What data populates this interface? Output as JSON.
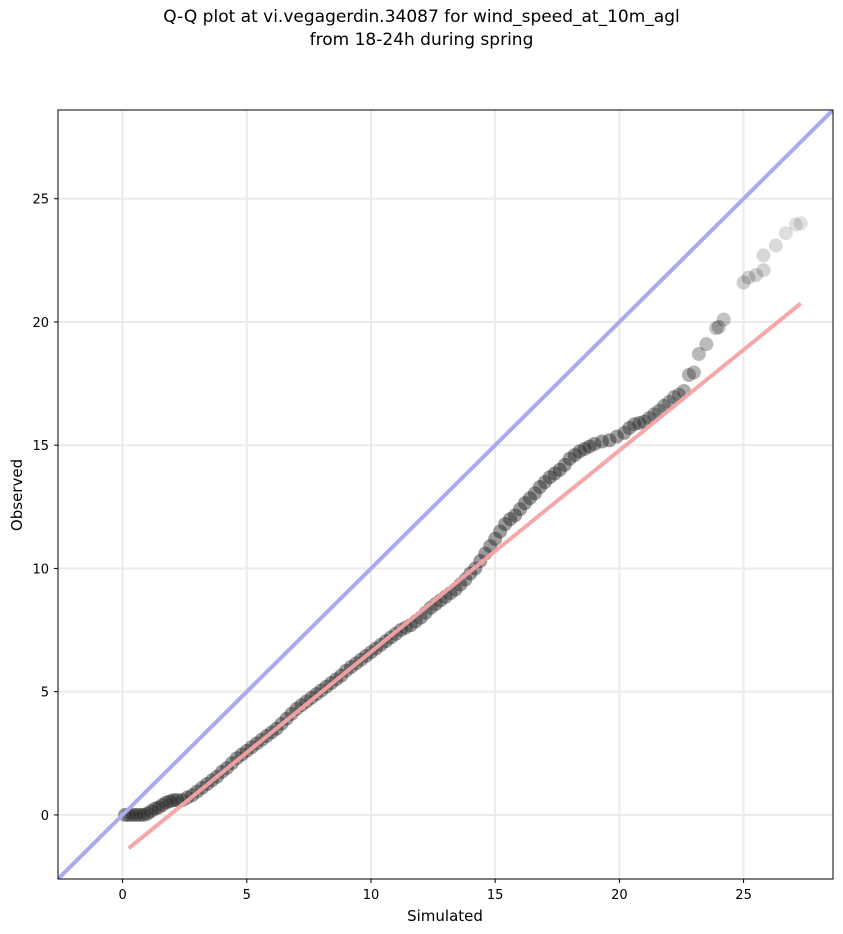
{
  "chart_data": {
    "type": "scatter",
    "title_line1": "Q-Q plot at vi.vegagerdin.34087 for wind_speed_at_10m_agl",
    "title_line2": "from 18-24h during spring",
    "xlabel": "Simulated",
    "ylabel": "Observed",
    "xlim": [
      -2.6,
      28.6
    ],
    "ylim": [
      -2.6,
      28.6
    ],
    "xticks": [
      0,
      5,
      10,
      15,
      20,
      25
    ],
    "yticks": [
      0,
      5,
      10,
      15,
      20,
      25
    ],
    "grid": true,
    "colors": {
      "identity_line": "#aaaaf0",
      "fit_line": "#f5a3a3",
      "points": "#222222",
      "frame": "#000000",
      "grid": "#ebebeb"
    },
    "identity_line": {
      "x": [
        -2.6,
        28.6
      ],
      "y": [
        -2.6,
        28.6
      ]
    },
    "fit_line": {
      "x": [
        0.25,
        27.3
      ],
      "y": [
        -1.35,
        20.75
      ]
    },
    "points": {
      "x": [
        0.1,
        0.25,
        0.4,
        0.55,
        0.7,
        0.85,
        1.0,
        1.15,
        1.3,
        1.45,
        1.6,
        1.75,
        1.9,
        2.05,
        2.2,
        2.4,
        2.6,
        2.8,
        3.0,
        3.2,
        3.4,
        3.6,
        3.8,
        4.0,
        4.2,
        4.4,
        4.6,
        4.8,
        5.0,
        5.2,
        5.4,
        5.6,
        5.8,
        6.0,
        6.2,
        6.4,
        6.6,
        6.8,
        7.0,
        7.2,
        7.4,
        7.6,
        7.8,
        8.0,
        8.2,
        8.4,
        8.6,
        8.8,
        9.0,
        9.2,
        9.4,
        9.6,
        9.8,
        10.0,
        10.2,
        10.4,
        10.6,
        10.8,
        11.0,
        11.2,
        11.4,
        11.6,
        11.8,
        12.0,
        12.2,
        12.4,
        12.6,
        12.8,
        13.0,
        13.2,
        13.4,
        13.6,
        13.8,
        14.0,
        14.2,
        14.4,
        14.6,
        14.8,
        15.0,
        15.2,
        15.4,
        15.6,
        15.8,
        16.0,
        16.2,
        16.4,
        16.6,
        16.8,
        17.0,
        17.2,
        17.4,
        17.6,
        17.8,
        18.0,
        18.2,
        18.4,
        18.6,
        18.8,
        19.0,
        19.3,
        19.6,
        19.9,
        20.2,
        20.4,
        20.6,
        20.8,
        21.0,
        21.2,
        21.4,
        21.6,
        21.8,
        22.0,
        22.2,
        22.4,
        22.6,
        22.8,
        23.0,
        23.2,
        23.5,
        23.9,
        24.0,
        24.2,
        25.0,
        25.2,
        25.5,
        25.8,
        25.8,
        26.3,
        26.7,
        27.1,
        27.3
      ],
      "y": [
        0.0,
        0.0,
        0.0,
        0.0,
        0.0,
        0.0,
        0.05,
        0.15,
        0.25,
        0.3,
        0.4,
        0.5,
        0.55,
        0.6,
        0.6,
        0.6,
        0.7,
        0.8,
        0.95,
        1.1,
        1.25,
        1.4,
        1.55,
        1.75,
        1.9,
        2.1,
        2.3,
        2.45,
        2.6,
        2.75,
        2.9,
        3.05,
        3.2,
        3.35,
        3.5,
        3.7,
        3.9,
        4.1,
        4.3,
        4.45,
        4.6,
        4.75,
        4.9,
        5.05,
        5.2,
        5.35,
        5.5,
        5.65,
        5.85,
        6.0,
        6.15,
        6.3,
        6.45,
        6.6,
        6.75,
        6.9,
        7.05,
        7.2,
        7.35,
        7.5,
        7.6,
        7.7,
        7.85,
        8.0,
        8.2,
        8.4,
        8.55,
        8.7,
        8.85,
        9.0,
        9.15,
        9.35,
        9.55,
        9.8,
        10.0,
        10.3,
        10.6,
        10.9,
        11.2,
        11.5,
        11.8,
        12.0,
        12.15,
        12.4,
        12.65,
        12.85,
        13.05,
        13.3,
        13.5,
        13.7,
        13.85,
        14.0,
        14.2,
        14.45,
        14.6,
        14.75,
        14.85,
        14.95,
        15.05,
        15.15,
        15.2,
        15.35,
        15.5,
        15.7,
        15.85,
        15.9,
        15.95,
        16.1,
        16.25,
        16.4,
        16.6,
        16.75,
        16.95,
        17.05,
        17.2,
        17.85,
        17.95,
        18.7,
        19.1,
        19.75,
        19.8,
        20.1,
        21.6,
        21.8,
        21.9,
        22.1,
        22.7,
        23.1,
        23.6,
        23.95,
        24.0
      ]
    }
  }
}
